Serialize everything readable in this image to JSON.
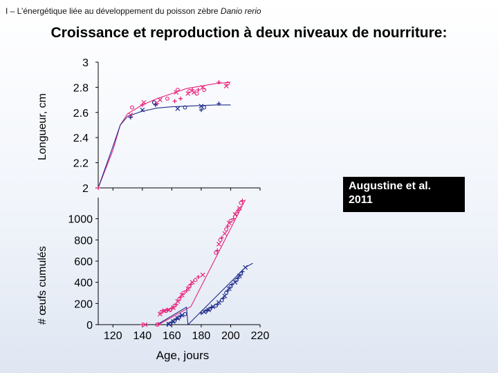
{
  "header": {
    "prefix": "I – L’énergétique liée au développement du poisson zèbre ",
    "species": "Danio rerio"
  },
  "title": "Croissance et reproduction à deux niveaux de nourriture:",
  "citation": {
    "line1": "Augustine et al.",
    "line2": "2011"
  },
  "colors": {
    "high_food": "#e8207a",
    "low_food": "#1f2a8a",
    "axis": "#000000"
  },
  "chart_data": [
    {
      "type": "scatter",
      "ylabel": "Longueur, cm",
      "xlim": [
        110,
        220
      ],
      "ylim": [
        2.0,
        3.0
      ],
      "yticks": [
        "2",
        "2.2",
        "2.4",
        "2.6",
        "2.8",
        "3"
      ],
      "series": [
        {
          "color": "high_food",
          "points": [
            [
              110,
              2.0
            ],
            [
              132,
              2.58
            ],
            [
              133,
              2.64
            ],
            [
              140,
              2.66
            ],
            [
              141,
              2.68
            ],
            [
              148,
              2.68
            ],
            [
              150,
              2.67
            ],
            [
              152,
              2.7
            ],
            [
              157,
              2.71
            ],
            [
              162,
              2.69
            ],
            [
              163,
              2.76
            ],
            [
              164,
              2.78
            ],
            [
              166,
              2.71
            ],
            [
              171,
              2.75
            ],
            [
              172,
              2.77
            ],
            [
              174,
              2.78
            ],
            [
              175,
              2.76
            ],
            [
              177,
              2.75
            ],
            [
              178,
              2.78
            ],
            [
              181,
              2.8
            ],
            [
              182,
              2.78
            ],
            [
              192,
              2.84
            ],
            [
              197,
              2.81
            ],
            [
              198,
              2.83
            ]
          ],
          "curve": [
            [
              110,
              2.0
            ],
            [
              120,
              2.3
            ],
            [
              125,
              2.5
            ],
            [
              130,
              2.59
            ],
            [
              140,
              2.66
            ],
            [
              150,
              2.71
            ],
            [
              160,
              2.75
            ],
            [
              170,
              2.79
            ],
            [
              180,
              2.81
            ],
            [
              190,
              2.83
            ],
            [
              200,
              2.84
            ]
          ]
        },
        {
          "color": "low_food",
          "points": [
            [
              132,
              2.56
            ],
            [
              140,
              2.62
            ],
            [
              148,
              2.68
            ],
            [
              149,
              2.66
            ],
            [
              164,
              2.63
            ],
            [
              169,
              2.64
            ],
            [
              180,
              2.62
            ],
            [
              180,
              2.65
            ],
            [
              182,
              2.64
            ],
            [
              192,
              2.67
            ]
          ],
          "curve": [
            [
              110,
              2.0
            ],
            [
              120,
              2.33
            ],
            [
              125,
              2.5
            ],
            [
              130,
              2.57
            ],
            [
              140,
              2.61
            ],
            [
              150,
              2.635
            ],
            [
              160,
              2.645
            ],
            [
              170,
              2.65
            ],
            [
              180,
              2.655
            ],
            [
              190,
              2.66
            ],
            [
              200,
              2.66
            ]
          ]
        }
      ]
    },
    {
      "type": "scatter",
      "ylabel": "# œufs cumulés",
      "xlabel": "Age, jours",
      "xlim": [
        110,
        220
      ],
      "ylim": [
        0,
        1200
      ],
      "yticks": [
        "0",
        "200",
        "400",
        "600",
        "800",
        "1000"
      ],
      "xticks": [
        "120",
        "140",
        "160",
        "180",
        "200",
        "220"
      ],
      "series": [
        {
          "color": "high_food",
          "points": [
            [
              140,
              0
            ],
            [
              142,
              0
            ],
            [
              150,
              0
            ],
            [
              151,
              3
            ],
            [
              152,
              100
            ],
            [
              153,
              120
            ],
            [
              154,
              130
            ],
            [
              155,
              132
            ],
            [
              156,
              130
            ],
            [
              157,
              135
            ],
            [
              158,
              140
            ],
            [
              159,
              140
            ],
            [
              160,
              150
            ],
            [
              161,
              160
            ],
            [
              162,
              180
            ],
            [
              163,
              190
            ],
            [
              164,
              220
            ],
            [
              165,
              240
            ],
            [
              166,
              260
            ],
            [
              167,
              280
            ],
            [
              168,
              300
            ],
            [
              170,
              320
            ],
            [
              171,
              340
            ],
            [
              172,
              360
            ],
            [
              173,
              380
            ],
            [
              174,
              400
            ],
            [
              176,
              420
            ],
            [
              178,
              450
            ],
            [
              181,
              470
            ],
            [
              190,
              680
            ],
            [
              191,
              700
            ],
            [
              192,
              760
            ],
            [
              193,
              800
            ],
            [
              194,
              820
            ],
            [
              196,
              860
            ],
            [
              197,
              900
            ],
            [
              198,
              930
            ],
            [
              199,
              960
            ],
            [
              200,
              980
            ],
            [
              202,
              1000
            ],
            [
              203,
              1040
            ],
            [
              204,
              1050
            ],
            [
              205,
              1080
            ],
            [
              206,
              1100
            ],
            [
              207,
              1150
            ],
            [
              208,
              1170
            ]
          ],
          "line": [
            [
              151,
              0
            ],
            [
              173,
              170
            ],
            [
              210,
              1180
            ]
          ]
        },
        {
          "color": "low_food",
          "points": [
            [
              157,
              0
            ],
            [
              158,
              5
            ],
            [
              159,
              10
            ],
            [
              160,
              20
            ],
            [
              161,
              30
            ],
            [
              162,
              40
            ],
            [
              163,
              50
            ],
            [
              164,
              60
            ],
            [
              165,
              70
            ],
            [
              166,
              80
            ],
            [
              167,
              90
            ],
            [
              169,
              100
            ],
            [
              180,
              110
            ],
            [
              182,
              120
            ],
            [
              183,
              125
            ],
            [
              184,
              130
            ],
            [
              185,
              140
            ],
            [
              186,
              150
            ],
            [
              187,
              160
            ],
            [
              188,
              170
            ],
            [
              190,
              180
            ],
            [
              191,
              190
            ],
            [
              192,
              210
            ],
            [
              194,
              230
            ],
            [
              195,
              250
            ],
            [
              196,
              270
            ],
            [
              197,
              300
            ],
            [
              198,
              320
            ],
            [
              199,
              340
            ],
            [
              200,
              360
            ],
            [
              201,
              380
            ],
            [
              203,
              400
            ],
            [
              204,
              420
            ],
            [
              205,
              440
            ],
            [
              206,
              460
            ],
            [
              207,
              480
            ],
            [
              208,
              500
            ],
            [
              210,
              540
            ]
          ],
          "line": [
            [
              150,
              0
            ],
            [
              170,
              165
            ],
            [
              171,
              0
            ],
            [
              210,
              540
            ],
            [
              215,
              580
            ]
          ]
        }
      ]
    }
  ]
}
